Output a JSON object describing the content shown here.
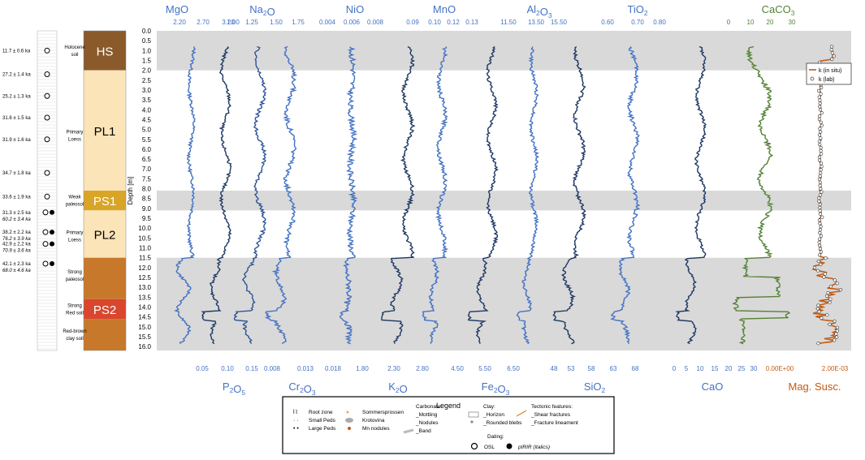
{
  "chart_data": {
    "type": "line",
    "y_axis": {
      "label": "Depth [m]",
      "ticks": [
        "0.0",
        "0.5",
        "1.0",
        "1.5",
        "2.0",
        "2.5",
        "3.0",
        "3.5",
        "4.0",
        "4.5",
        "5.0",
        "5.5",
        "6.0",
        "6.5",
        "7.0",
        "7.5",
        "8.0",
        "8.5",
        "9.0",
        "9.5",
        "10.0",
        "10.5",
        "11.0",
        "11.5",
        "12.0",
        "12.5",
        "13.0",
        "13.5",
        "14.0",
        "14.5",
        "15.0",
        "15.5",
        "16.0"
      ],
      "ylim": [
        0,
        16.2
      ]
    },
    "shaded_bands_depth": [
      [
        0,
        2.0
      ],
      [
        8.1,
        9.1
      ],
      [
        11.5,
        16.2
      ]
    ],
    "top_titles": [
      {
        "name": "MgO",
        "color": "#4472c4"
      },
      {
        "name": "Na",
        "sub": "2",
        "tail": "O",
        "color": "#4472c4"
      },
      {
        "name": "NiO",
        "color": "#4472c4"
      },
      {
        "name": "MnO",
        "color": "#4472c4"
      },
      {
        "name": "Al",
        "sub": "2",
        "tail": "O",
        "sub2": "3",
        "color": "#4472c4"
      },
      {
        "name": "TiO",
        "sub": "2",
        "color": "#4472c4"
      },
      {
        "name": "CaCO",
        "sub": "3",
        "color": "#548235"
      }
    ],
    "top_ticks": [
      {
        "color": "#4472c4",
        "labels": [
          "2.20",
          "2.70",
          "3.20"
        ]
      },
      {
        "color": "#4472c4",
        "labels": [
          "1.00",
          "1.25",
          "1.50"
        ]
      },
      {
        "color": "#4472c4",
        "labels": [
          "1.75",
          "0.004"
        ]
      },
      {
        "color": "#4472c4",
        "labels": [
          "0.006",
          "0.008"
        ]
      },
      {
        "color": "#4472c4",
        "labels": [
          "0.09",
          "0.10",
          "0.12",
          "0.13"
        ]
      },
      {
        "color": "#4472c4",
        "labels": [
          "11.50",
          "13.50",
          "15.50"
        ]
      },
      {
        "color": "#4472c4",
        "labels": [
          "0.60",
          "0.70",
          "0.80"
        ]
      },
      {
        "color": "#548235",
        "labels": [
          "0",
          "10",
          "20",
          "30"
        ]
      }
    ],
    "bottom_ticks": [
      {
        "color": "#4472c4",
        "labels": [
          "0.05",
          "0.10",
          "0.15"
        ]
      },
      {
        "color": "#4472c4",
        "labels": [
          "0.008",
          "0.013",
          "0.018"
        ]
      },
      {
        "color": "#4472c4",
        "labels": [
          "1.80",
          "2.30",
          "2.80"
        ]
      },
      {
        "color": "#4472c4",
        "labels": [
          "4.50",
          "5.50",
          "6.50"
        ]
      },
      {
        "color": "#4472c4",
        "labels": [
          "48",
          "53",
          "58",
          "63",
          "68"
        ]
      },
      {
        "color": "#4472c4",
        "labels": [
          "0",
          "5",
          "10",
          "15",
          "20",
          "25",
          "30"
        ]
      },
      {
        "color": "#c55a11",
        "labels": [
          "0.00E+00",
          "2.00E-03"
        ]
      }
    ],
    "bottom_titles": [
      {
        "name": "P",
        "sub": "2",
        "tail": "O",
        "sub2": "5",
        "color": "#4472c4"
      },
      {
        "name": "Cr",
        "sub": "2",
        "tail": "O",
        "sub2": "3",
        "color": "#4472c4"
      },
      {
        "name": "K",
        "sub": "2",
        "tail": "O",
        "color": "#4472c4"
      },
      {
        "name": "Fe",
        "sub": "2",
        "tail": "O",
        "sub2": "3",
        "color": "#4472c4"
      },
      {
        "name": "SiO",
        "sub": "2",
        "color": "#4472c4"
      },
      {
        "name": "CaO",
        "color": "#4472c4"
      },
      {
        "name": "Mag. Susc.",
        "color": "#c55a11"
      }
    ],
    "series": [
      {
        "name": "MgO",
        "color": "#4472c4",
        "base": 0.18,
        "pattern": "mgo"
      },
      {
        "name": "P2O5",
        "color": "#1f3864",
        "base": 0.08,
        "pattern": "dark"
      },
      {
        "name": "Na2O",
        "color": "#2f5597",
        "base": 0.17,
        "pattern": "dark"
      },
      {
        "name": "Cr2O3",
        "color": "#4472c4",
        "base": 0.1,
        "pattern": "mid"
      },
      {
        "name": "NiO",
        "color": "#4472c4",
        "base": 0.1,
        "pattern": "noisy"
      },
      {
        "name": "K2O",
        "color": "#1f3864",
        "base": 0.15,
        "pattern": "dark"
      },
      {
        "name": "MnO",
        "color": "#4472c4",
        "base": 0.1,
        "pattern": "mid"
      },
      {
        "name": "Fe2O3",
        "color": "#1f3864",
        "base": 0.12,
        "pattern": "dark"
      },
      {
        "name": "Al2O3",
        "color": "#4472c4",
        "base": 0.1,
        "pattern": "mid"
      },
      {
        "name": "SiO2",
        "color": "#1f3864",
        "base": 0.15,
        "pattern": "dark"
      },
      {
        "name": "TiO2",
        "color": "#4472c4",
        "base": 0.1,
        "pattern": "mid"
      },
      {
        "name": "CaO",
        "color": "#1f3864",
        "base": 0.18,
        "pattern": "dark"
      },
      {
        "name": "CaCO3",
        "color": "#548235",
        "base": 0.55,
        "pattern": "caco3"
      }
    ],
    "mag_susc": {
      "legend": [
        "k (in situ)",
        "k (lab)"
      ],
      "in_situ_color": "#c55a11"
    }
  },
  "strat_units": [
    {
      "label": "HS",
      "top": 0.0,
      "bottom": 2.0,
      "color": "#8a5a2b",
      "text_color": "#ffffff"
    },
    {
      "label": "PL1",
      "top": 2.0,
      "bottom": 8.1,
      "color": "#fbe4b8",
      "text_color": "#000000"
    },
    {
      "label": "PS1",
      "top": 8.1,
      "bottom": 9.1,
      "color": "#d9a526",
      "text_color": "#ffffff"
    },
    {
      "label": "PL2",
      "top": 9.1,
      "bottom": 11.5,
      "color": "#fbe4b8",
      "text_color": "#000000"
    },
    {
      "label": "",
      "top": 11.5,
      "bottom": 13.6,
      "color": "#c8782a",
      "text_color": "#000000"
    },
    {
      "label": "PS2",
      "top": 13.6,
      "bottom": 14.6,
      "color": "#d9462d",
      "text_color": "#ffffff"
    },
    {
      "label": "",
      "top": 14.6,
      "bottom": 16.2,
      "color": "#c8782a",
      "text_color": "#000000"
    }
  ],
  "horizon_labels": [
    {
      "lines": [
        "Holocene",
        "soil"
      ],
      "depth": 0.9
    },
    {
      "lines": [
        "Primary",
        "Loess"
      ],
      "depth": 5.2
    },
    {
      "lines": [
        "Weak",
        "paleosol"
      ],
      "depth": 8.5
    },
    {
      "lines": [
        "Primary",
        "Loess"
      ],
      "depth": 10.3
    },
    {
      "lines": [
        "Strong",
        "paleosol"
      ],
      "depth": 12.3
    },
    {
      "lines": [
        "Strong",
        "Red soil"
      ],
      "depth": 14.0
    },
    {
      "lines": [
        "Red-brown",
        "clay soil"
      ],
      "depth": 15.3
    }
  ],
  "dates": [
    {
      "osl": "11.7 ± 0.6 ka",
      "depth": 1.0,
      "pirir": ""
    },
    {
      "osl": "27.2 ± 1.4 ka",
      "depth": 2.2,
      "pirir": ""
    },
    {
      "osl": "25.2 ± 1.3 ka",
      "depth": 3.3,
      "pirir": ""
    },
    {
      "osl": "31.6 ± 1.5 ka",
      "depth": 4.4,
      "pirir": ""
    },
    {
      "osl": "31.9 ± 1.6 ka",
      "depth": 5.5,
      "pirir": ""
    },
    {
      "osl": "34.7 ± 1.8 ka",
      "depth": 7.2,
      "pirir": ""
    },
    {
      "osl": "33.6 ± 1.9 ka",
      "depth": 8.4,
      "pirir": ""
    },
    {
      "osl": "31.3 ± 2.5 ka",
      "depth": 9.2,
      "pirir": "60.2 ± 3.4 ka"
    },
    {
      "osl": "38.2 ± 2.2 ka",
      "depth": 10.2,
      "pirir": "76.2 ± 3.9 ka"
    },
    {
      "osl": "42.9 ± 2.2 ka",
      "depth": 10.8,
      "pirir": "70.9 ± 3.6 ka"
    },
    {
      "osl": "42.1 ± 2.3 ka",
      "depth": 11.8,
      "pirir": "68.0 ± 4.6 ka"
    }
  ],
  "legend": {
    "title": "Legend",
    "col1": [
      "Root zone",
      "Small Peds",
      "Large Peds"
    ],
    "col2": [
      "Sommersprossen",
      "Krotovina",
      "Mn nodules"
    ],
    "carbonate_title": "Carbonate:",
    "carbonate": [
      "_Mottling",
      "_Nodules",
      "_Band"
    ],
    "clay_title": "Clay:",
    "clay": [
      "_Horizon",
      "_Rounded blebs"
    ],
    "tectonic_title": "Tectonic features:",
    "tectonic": [
      "_Shear fractures",
      "_Fracture lineament"
    ],
    "dating_title": "Dating:",
    "dating": [
      "OSL",
      "pIRIR (italics)"
    ]
  }
}
